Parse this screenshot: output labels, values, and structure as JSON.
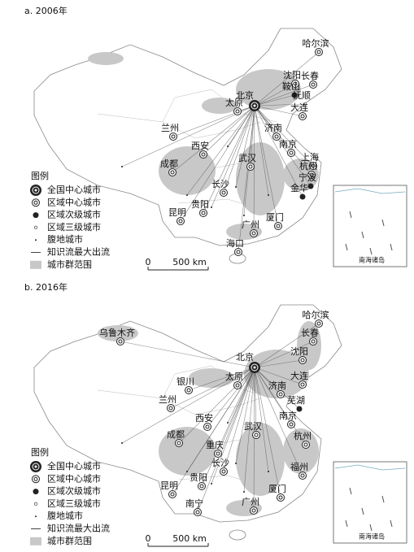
{
  "panels": [
    {
      "title": "a. 2006年",
      "cities": [
        "哈尔滨",
        "北京",
        "沈阳",
        "长春",
        "鞍山",
        "抚顺",
        "太原",
        "大连",
        "济南",
        "兰州",
        "南京",
        "西安",
        "上海",
        "武汉",
        "杭州",
        "成都",
        "宁波",
        "长沙",
        "金华",
        "贵阳",
        "昆明",
        "厦门",
        "广州",
        "海口"
      ],
      "legend": {
        "title": "图例",
        "items": [
          "全国中心城市",
          "区域中心城市",
          "区域次级城市",
          "区域三级城市",
          "腹地城市",
          "知识流最大出流",
          "城市群范围"
        ]
      },
      "scale": {
        "zero": "0",
        "label": "500 km"
      },
      "inset_label": "南海诸岛"
    },
    {
      "title": "b. 2016年",
      "cities": [
        "哈尔滨",
        "乌鲁木齐",
        "长春",
        "北京",
        "沈阳",
        "银川",
        "太原",
        "大连",
        "兰州",
        "济南",
        "芜湖",
        "南京",
        "西安",
        "成都",
        "重庆",
        "武汉",
        "杭州",
        "长沙",
        "福州",
        "贵阳",
        "昆明",
        "厦门",
        "南宁",
        "广州"
      ],
      "legend": {
        "title": "图例",
        "items": [
          "全国中心城市",
          "区域中心城市",
          "区域次级城市",
          "区域三级城市",
          "腹地城市",
          "知识流最大出流",
          "城市群范围"
        ]
      },
      "scale": {
        "zero": "0",
        "label": "500 km"
      },
      "inset_label": "南海诸岛"
    }
  ]
}
